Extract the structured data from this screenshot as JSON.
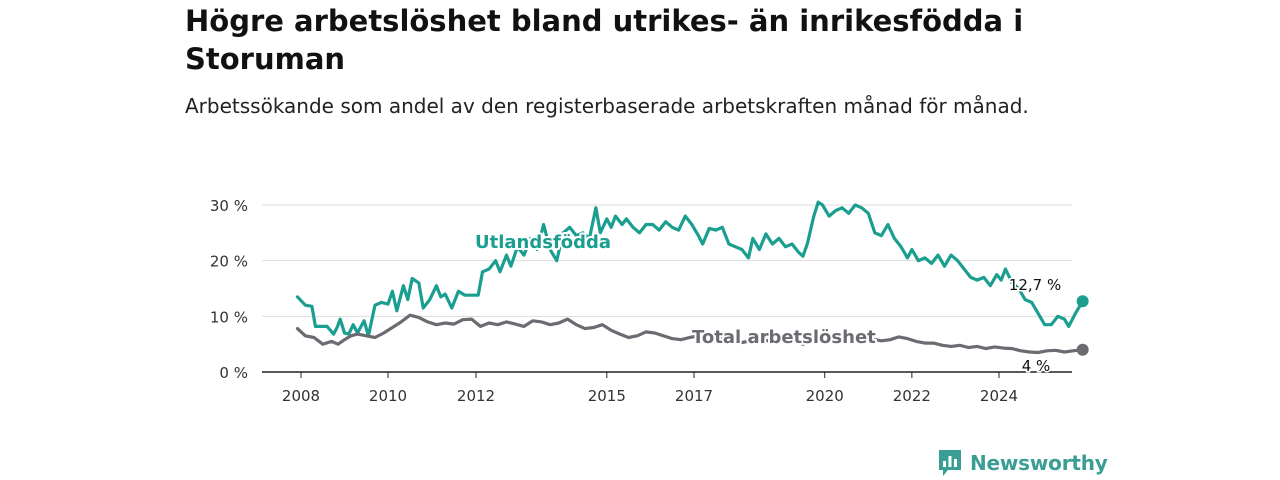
{
  "chart_data": {
    "type": "line",
    "title": "Högre arbetslöshet bland utrikes- än inrikesfödda i Storuman",
    "subtitle": "Arbetssökande som andel av den registerbaserade arbetskraften månad för månad.",
    "ylim": [
      0,
      30
    ],
    "yticks": [
      0,
      10,
      20,
      30
    ],
    "ytick_labels": [
      "0 %",
      "10 %",
      "20 %",
      "30 %"
    ],
    "xticks": [
      2008,
      2010,
      2012,
      2015,
      2017,
      2020,
      2022,
      2024
    ],
    "xtick_labels": [
      "2008",
      "2010",
      "2012",
      "2015",
      "2017",
      "2020",
      "2022",
      "2024"
    ],
    "grid": true,
    "legend": "inline labels",
    "series": [
      {
        "name": "Utlandsfödda",
        "color": "#1a9e90",
        "end_label": "12,7 %",
        "points": [
          [
            2007.92,
            13.5
          ],
          [
            2008.1,
            12.0
          ],
          [
            2008.25,
            11.8
          ],
          [
            2008.33,
            8.2
          ],
          [
            2008.6,
            8.2
          ],
          [
            2008.75,
            6.8
          ],
          [
            2008.83,
            8.0
          ],
          [
            2008.9,
            9.5
          ],
          [
            2009.0,
            7.0
          ],
          [
            2009.1,
            6.8
          ],
          [
            2009.2,
            8.5
          ],
          [
            2009.3,
            7.0
          ],
          [
            2009.45,
            9.2
          ],
          [
            2009.55,
            6.5
          ],
          [
            2009.7,
            12.0
          ],
          [
            2009.85,
            12.5
          ],
          [
            2010.0,
            12.2
          ],
          [
            2010.1,
            14.5
          ],
          [
            2010.2,
            11.0
          ],
          [
            2010.35,
            15.5
          ],
          [
            2010.45,
            13.0
          ],
          [
            2010.55,
            16.8
          ],
          [
            2010.7,
            16.0
          ],
          [
            2010.8,
            11.5
          ],
          [
            2010.95,
            13.0
          ],
          [
            2011.1,
            15.5
          ],
          [
            2011.2,
            13.5
          ],
          [
            2011.3,
            14.0
          ],
          [
            2011.45,
            11.5
          ],
          [
            2011.6,
            14.5
          ],
          [
            2011.75,
            13.8
          ],
          [
            2012.05,
            13.8
          ],
          [
            2012.15,
            18.0
          ],
          [
            2012.3,
            18.5
          ],
          [
            2012.45,
            20.0
          ],
          [
            2012.55,
            18.0
          ],
          [
            2012.7,
            21.0
          ],
          [
            2012.8,
            19.0
          ],
          [
            2012.95,
            22.5
          ],
          [
            2013.1,
            21.0
          ],
          [
            2013.25,
            24.0
          ],
          [
            2013.4,
            22.0
          ],
          [
            2013.55,
            26.5
          ],
          [
            2013.7,
            22.0
          ],
          [
            2013.85,
            20.0
          ],
          [
            2014.0,
            25.0
          ],
          [
            2014.15,
            26.0
          ],
          [
            2014.3,
            24.5
          ],
          [
            2014.45,
            25.0
          ],
          [
            2014.6,
            24.0
          ],
          [
            2014.75,
            29.5
          ],
          [
            2014.85,
            25.0
          ],
          [
            2015.0,
            27.5
          ],
          [
            2015.1,
            26.0
          ],
          [
            2015.2,
            28.0
          ],
          [
            2015.35,
            26.5
          ],
          [
            2015.45,
            27.5
          ],
          [
            2015.6,
            26.0
          ],
          [
            2015.75,
            25.0
          ],
          [
            2015.9,
            26.5
          ],
          [
            2016.05,
            26.5
          ],
          [
            2016.2,
            25.5
          ],
          [
            2016.35,
            27.0
          ],
          [
            2016.5,
            26.0
          ],
          [
            2016.65,
            25.5
          ],
          [
            2016.8,
            28.0
          ],
          [
            2016.95,
            26.5
          ],
          [
            2017.1,
            24.5
          ],
          [
            2017.2,
            23.0
          ],
          [
            2017.35,
            25.8
          ],
          [
            2017.5,
            25.5
          ],
          [
            2017.65,
            26.0
          ],
          [
            2017.8,
            23.0
          ],
          [
            2017.95,
            22.5
          ],
          [
            2018.1,
            22.0
          ],
          [
            2018.25,
            20.5
          ],
          [
            2018.35,
            24.0
          ],
          [
            2018.5,
            22.0
          ],
          [
            2018.65,
            24.8
          ],
          [
            2018.8,
            23.0
          ],
          [
            2018.95,
            24.0
          ],
          [
            2019.1,
            22.5
          ],
          [
            2019.25,
            23.0
          ],
          [
            2019.4,
            21.5
          ],
          [
            2019.5,
            20.8
          ],
          [
            2019.6,
            23.0
          ],
          [
            2019.75,
            28.0
          ],
          [
            2019.85,
            30.5
          ],
          [
            2019.95,
            30.0
          ],
          [
            2020.1,
            28.0
          ],
          [
            2020.25,
            29.0
          ],
          [
            2020.4,
            29.5
          ],
          [
            2020.55,
            28.5
          ],
          [
            2020.7,
            30.0
          ],
          [
            2020.85,
            29.5
          ],
          [
            2021.0,
            28.5
          ],
          [
            2021.15,
            25.0
          ],
          [
            2021.3,
            24.5
          ],
          [
            2021.45,
            26.5
          ],
          [
            2021.6,
            24.0
          ],
          [
            2021.75,
            22.5
          ],
          [
            2021.9,
            20.5
          ],
          [
            2022.0,
            22.0
          ],
          [
            2022.15,
            20.0
          ],
          [
            2022.3,
            20.5
          ],
          [
            2022.45,
            19.5
          ],
          [
            2022.6,
            21.0
          ],
          [
            2022.75,
            19.0
          ],
          [
            2022.9,
            21.0
          ],
          [
            2023.05,
            20.0
          ],
          [
            2023.2,
            18.5
          ],
          [
            2023.35,
            17.0
          ],
          [
            2023.5,
            16.5
          ],
          [
            2023.65,
            17.0
          ],
          [
            2023.8,
            15.5
          ],
          [
            2023.95,
            17.5
          ],
          [
            2024.05,
            16.5
          ],
          [
            2024.15,
            18.5
          ],
          [
            2024.3,
            16.0
          ],
          [
            2024.45,
            15.0
          ],
          [
            2024.6,
            13.0
          ],
          [
            2024.75,
            12.5
          ],
          [
            2024.9,
            10.5
          ],
          [
            2025.05,
            8.5
          ],
          [
            2025.2,
            8.5
          ],
          [
            2025.35,
            10.0
          ],
          [
            2025.5,
            9.5
          ],
          [
            2025.6,
            8.2
          ],
          [
            2025.75,
            10.5
          ],
          [
            2025.92,
            12.7
          ]
        ]
      },
      {
        "name": "Total arbetslöshet",
        "color": "#6b6b72",
        "end_label": "4 %",
        "points": [
          [
            2007.92,
            7.8
          ],
          [
            2008.1,
            6.5
          ],
          [
            2008.3,
            6.2
          ],
          [
            2008.5,
            5.0
          ],
          [
            2008.7,
            5.5
          ],
          [
            2008.85,
            5.0
          ],
          [
            2009.0,
            5.8
          ],
          [
            2009.15,
            6.5
          ],
          [
            2009.3,
            6.8
          ],
          [
            2009.5,
            6.5
          ],
          [
            2009.7,
            6.2
          ],
          [
            2009.9,
            7.0
          ],
          [
            2010.1,
            8.0
          ],
          [
            2010.3,
            9.0
          ],
          [
            2010.5,
            10.2
          ],
          [
            2010.7,
            9.8
          ],
          [
            2010.9,
            9.0
          ],
          [
            2011.1,
            8.5
          ],
          [
            2011.3,
            8.8
          ],
          [
            2011.5,
            8.6
          ],
          [
            2011.7,
            9.4
          ],
          [
            2011.9,
            9.5
          ],
          [
            2012.1,
            8.2
          ],
          [
            2012.3,
            8.8
          ],
          [
            2012.5,
            8.5
          ],
          [
            2012.7,
            9.0
          ],
          [
            2012.9,
            8.6
          ],
          [
            2013.1,
            8.2
          ],
          [
            2013.3,
            9.2
          ],
          [
            2013.5,
            9.0
          ],
          [
            2013.7,
            8.5
          ],
          [
            2013.9,
            8.8
          ],
          [
            2014.1,
            9.5
          ],
          [
            2014.3,
            8.5
          ],
          [
            2014.5,
            7.8
          ],
          [
            2014.7,
            8.0
          ],
          [
            2014.9,
            8.5
          ],
          [
            2015.1,
            7.5
          ],
          [
            2015.3,
            6.8
          ],
          [
            2015.5,
            6.2
          ],
          [
            2015.7,
            6.5
          ],
          [
            2015.9,
            7.2
          ],
          [
            2016.1,
            7.0
          ],
          [
            2016.3,
            6.5
          ],
          [
            2016.5,
            6.0
          ],
          [
            2016.7,
            5.8
          ],
          [
            2016.9,
            6.2
          ],
          [
            2017.1,
            6.5
          ],
          [
            2017.3,
            6.0
          ],
          [
            2017.5,
            6.4
          ],
          [
            2017.7,
            6.2
          ],
          [
            2017.9,
            5.5
          ],
          [
            2018.1,
            5.3
          ],
          [
            2018.3,
            5.6
          ],
          [
            2018.5,
            6.0
          ],
          [
            2018.7,
            5.6
          ],
          [
            2018.9,
            5.8
          ],
          [
            2019.1,
            5.4
          ],
          [
            2019.3,
            5.6
          ],
          [
            2019.5,
            5.0
          ],
          [
            2019.7,
            5.6
          ],
          [
            2019.9,
            6.0
          ],
          [
            2020.1,
            5.6
          ],
          [
            2020.3,
            6.2
          ],
          [
            2020.5,
            6.0
          ],
          [
            2020.7,
            6.2
          ],
          [
            2020.9,
            5.8
          ],
          [
            2021.1,
            5.9
          ],
          [
            2021.3,
            5.6
          ],
          [
            2021.5,
            5.8
          ],
          [
            2021.7,
            6.3
          ],
          [
            2021.9,
            6.0
          ],
          [
            2022.1,
            5.5
          ],
          [
            2022.3,
            5.2
          ],
          [
            2022.5,
            5.2
          ],
          [
            2022.7,
            4.8
          ],
          [
            2022.9,
            4.6
          ],
          [
            2023.1,
            4.8
          ],
          [
            2023.3,
            4.4
          ],
          [
            2023.5,
            4.6
          ],
          [
            2023.7,
            4.2
          ],
          [
            2023.9,
            4.5
          ],
          [
            2024.1,
            4.3
          ],
          [
            2024.3,
            4.2
          ],
          [
            2024.5,
            3.8
          ],
          [
            2024.7,
            3.6
          ],
          [
            2024.9,
            3.5
          ],
          [
            2025.1,
            3.8
          ],
          [
            2025.3,
            3.9
          ],
          [
            2025.5,
            3.6
          ],
          [
            2025.7,
            3.8
          ],
          [
            2025.92,
            4.0
          ]
        ]
      }
    ]
  },
  "brand": {
    "name": "Newsworthy",
    "icon": "newsworthy-logo-icon",
    "color": "#3a9e94"
  }
}
